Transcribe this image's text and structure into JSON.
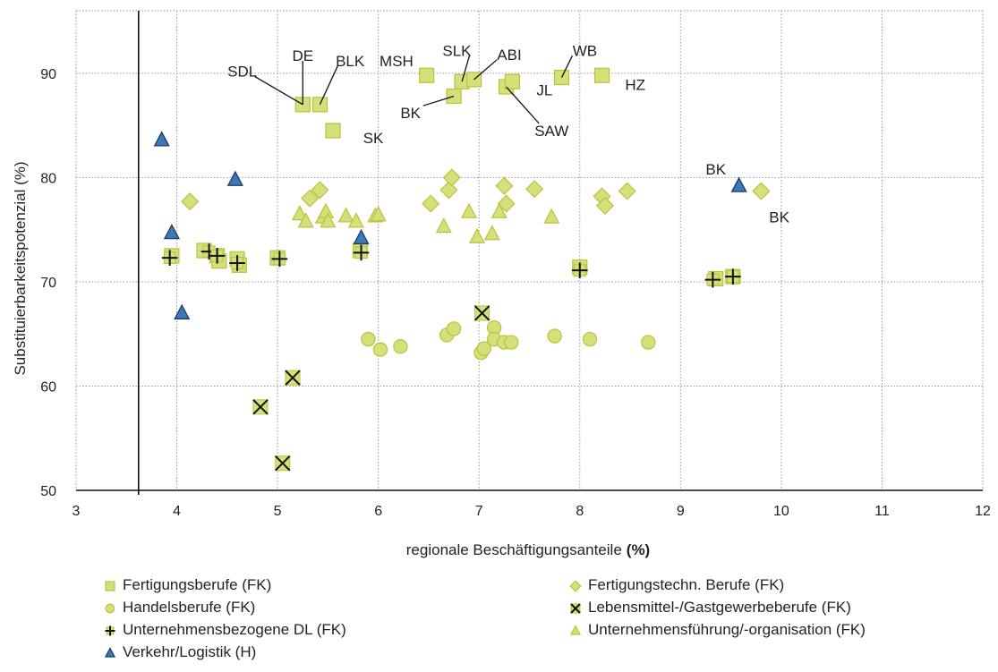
{
  "chart_data": {
    "type": "scatter",
    "xlabel_prefix": "regionale Beschäftigungsanteile",
    "xlabel_suffix": "(%)",
    "ylabel": "Substituierbarkeitspotenzial (%)",
    "xlim": [
      3,
      12
    ],
    "ylim": [
      50,
      96
    ],
    "x_ticks": [
      "3",
      "4",
      "5",
      "6",
      "7",
      "8",
      "9",
      "10",
      "11",
      "12"
    ],
    "y_ticks": [
      "50",
      "60",
      "70",
      "80",
      "90"
    ],
    "grid": true,
    "vertical_reference_x": 3.62,
    "colors": {
      "fill": "#d6e07a",
      "stroke": "#b8c33e",
      "blue": "#3b78b6",
      "dark": "#111111"
    },
    "series": [
      {
        "name": "Fertigungsberufe (FK)",
        "marker": "square",
        "points": [
          [
            5.25,
            87.0
          ],
          [
            5.42,
            87.0
          ],
          [
            5.55,
            84.5
          ],
          [
            6.48,
            89.8
          ],
          [
            6.75,
            87.8
          ],
          [
            6.83,
            89.2
          ],
          [
            6.95,
            89.4
          ],
          [
            7.27,
            88.7
          ],
          [
            7.33,
            89.2
          ],
          [
            7.82,
            89.6
          ],
          [
            8.22,
            89.8
          ],
          [
            3.95,
            72.5
          ],
          [
            4.27,
            73.0
          ],
          [
            4.4,
            72.5
          ],
          [
            4.42,
            72.0
          ],
          [
            4.6,
            72.2
          ],
          [
            4.62,
            71.6
          ],
          [
            5.0,
            72.3
          ],
          [
            5.82,
            73.0
          ],
          [
            8.0,
            71.4
          ],
          [
            9.35,
            70.3
          ],
          [
            9.52,
            70.5
          ]
        ]
      },
      {
        "name": "Fertigungstechn. Berufe (FK)",
        "marker": "diamond",
        "points": [
          [
            4.13,
            77.7
          ],
          [
            5.32,
            78.0
          ],
          [
            5.42,
            78.8
          ],
          [
            6.52,
            77.5
          ],
          [
            6.7,
            78.8
          ],
          [
            6.73,
            80.0
          ],
          [
            7.25,
            79.2
          ],
          [
            7.27,
            77.5
          ],
          [
            7.55,
            78.9
          ],
          [
            8.22,
            78.2
          ],
          [
            8.25,
            77.3
          ],
          [
            8.47,
            78.7
          ],
          [
            9.8,
            78.7
          ]
        ]
      },
      {
        "name": "Handelsberufe (FK)",
        "marker": "circle",
        "points": [
          [
            5.9,
            64.5
          ],
          [
            6.02,
            63.5
          ],
          [
            6.22,
            63.8
          ],
          [
            6.68,
            64.9
          ],
          [
            6.75,
            65.5
          ],
          [
            7.02,
            63.2
          ],
          [
            7.05,
            63.6
          ],
          [
            7.15,
            65.6
          ],
          [
            7.15,
            64.5
          ],
          [
            7.25,
            64.2
          ],
          [
            7.32,
            64.2
          ],
          [
            7.75,
            64.8
          ],
          [
            8.1,
            64.5
          ],
          [
            8.68,
            64.2
          ]
        ]
      },
      {
        "name": "Lebensmittel-/Gastgewerbeberufe (FK)",
        "marker": "x",
        "points": [
          [
            4.83,
            58.0
          ],
          [
            5.05,
            52.6
          ],
          [
            5.15,
            60.8
          ],
          [
            7.03,
            67.0
          ]
        ]
      },
      {
        "name": "Unternehmensbezogene DL (FK)",
        "marker": "plus",
        "points": [
          [
            3.93,
            72.3
          ],
          [
            4.32,
            72.9
          ],
          [
            4.4,
            72.5
          ],
          [
            4.6,
            71.8
          ],
          [
            5.02,
            72.2
          ],
          [
            5.83,
            72.8
          ],
          [
            8.0,
            71.1
          ],
          [
            9.32,
            70.2
          ],
          [
            9.52,
            70.5
          ]
        ]
      },
      {
        "name": "Unternehmensführung/-organisation (FK)",
        "marker": "triangle",
        "points": [
          [
            5.22,
            76.5
          ],
          [
            5.28,
            75.8
          ],
          [
            5.45,
            76.2
          ],
          [
            5.48,
            76.7
          ],
          [
            5.5,
            75.8
          ],
          [
            5.68,
            76.3
          ],
          [
            5.78,
            75.8
          ],
          [
            5.97,
            76.3
          ],
          [
            6.0,
            76.4
          ],
          [
            6.65,
            75.3
          ],
          [
            6.9,
            76.7
          ],
          [
            6.98,
            74.3
          ],
          [
            7.13,
            74.6
          ],
          [
            7.2,
            76.7
          ],
          [
            7.72,
            76.2
          ]
        ]
      },
      {
        "name": "Verkehr/Logistik (H)",
        "marker": "triangle-blue",
        "points": [
          [
            3.85,
            83.6
          ],
          [
            3.95,
            74.7
          ],
          [
            4.05,
            67.0
          ],
          [
            4.58,
            79.8
          ],
          [
            5.83,
            74.2
          ],
          [
            9.58,
            79.2
          ]
        ]
      }
    ],
    "annotations": [
      {
        "text": "SDL",
        "x": 4.65,
        "y": 90.2,
        "to": [
          5.25,
          87.0
        ]
      },
      {
        "text": "DE",
        "x": 5.25,
        "y": 91.7,
        "to": [
          5.25,
          87.0
        ]
      },
      {
        "text": "BLK",
        "x": 5.72,
        "y": 91.2,
        "to": [
          5.42,
          87.0
        ]
      },
      {
        "text": "MSH",
        "x": 6.18,
        "y": 91.2
      },
      {
        "text": "SK",
        "x": 5.95,
        "y": 83.8
      },
      {
        "text": "SLK",
        "x": 6.78,
        "y": 92.2,
        "to": [
          6.83,
          89.2
        ]
      },
      {
        "text": "ABI",
        "x": 7.3,
        "y": 91.8,
        "to": [
          6.95,
          89.4
        ]
      },
      {
        "text": "BK",
        "x": 6.32,
        "y": 86.2,
        "to": [
          6.75,
          87.8
        ]
      },
      {
        "text": "SAW",
        "x": 7.72,
        "y": 84.5,
        "to": [
          7.27,
          88.7
        ]
      },
      {
        "text": "WB",
        "x": 8.05,
        "y": 92.2,
        "to": [
          7.82,
          89.6
        ]
      },
      {
        "text": "JL",
        "x": 7.65,
        "y": 88.4
      },
      {
        "text": "HZ",
        "x": 8.55,
        "y": 88.9
      },
      {
        "text": "BK",
        "x": 9.35,
        "y": 80.8
      },
      {
        "text": "BK",
        "x": 9.98,
        "y": 76.2
      }
    ]
  }
}
